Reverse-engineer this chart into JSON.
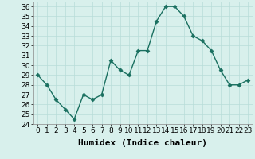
{
  "x": [
    0,
    1,
    2,
    3,
    4,
    5,
    6,
    7,
    8,
    9,
    10,
    11,
    12,
    13,
    14,
    15,
    16,
    17,
    18,
    19,
    20,
    21,
    22,
    23
  ],
  "y": [
    29,
    28,
    26.5,
    25.5,
    24.5,
    27,
    26.5,
    27,
    30.5,
    29.5,
    29,
    31.5,
    31.5,
    34.5,
    36,
    36,
    35,
    33,
    32.5,
    31.5,
    29.5,
    28,
    28,
    28.5
  ],
  "line_color": "#1a7060",
  "marker": "D",
  "marker_size": 2.5,
  "bg_color": "#d8f0ec",
  "grid_color": "#b8ddd8",
  "ylim": [
    24,
    36.5
  ],
  "yticks": [
    24,
    25,
    26,
    27,
    28,
    29,
    30,
    31,
    32,
    33,
    34,
    35,
    36
  ],
  "xlabel": "Humidex (Indice chaleur)",
  "xlabel_fontsize": 8,
  "tick_fontsize": 6.5,
  "line_width": 1.0
}
